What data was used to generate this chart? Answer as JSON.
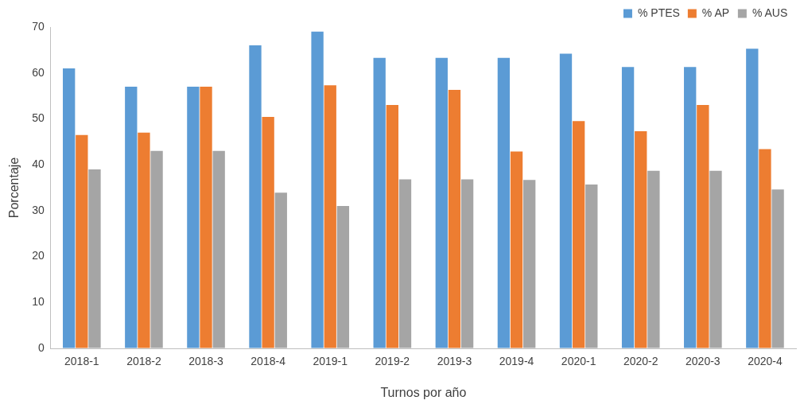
{
  "chart_data": {
    "type": "bar",
    "xlabel": "Turnos por año",
    "ylabel": "Porcentaje",
    "categories": [
      "2018-1",
      "2018-2",
      "2018-3",
      "2018-4",
      "2019-1",
      "2019-2",
      "2019-3",
      "2019-4",
      "2020-1",
      "2020-2",
      "2020-3",
      "2020-4"
    ],
    "series": [
      {
        "name": "% PTES",
        "color": "#5b9bd5",
        "values": [
          61,
          57,
          57,
          66,
          69,
          63.3,
          63.3,
          63.3,
          64.2,
          61.3,
          61.3,
          65.3
        ]
      },
      {
        "name": "% AP",
        "color": "#ed7d31",
        "values": [
          46.5,
          47,
          57,
          50.4,
          57.3,
          53,
          56.3,
          42.9,
          49.5,
          47.3,
          53,
          43.4
        ]
      },
      {
        "name": "% AUS",
        "color": "#a5a5a5",
        "values": [
          39,
          43,
          43,
          33.9,
          31,
          36.8,
          36.8,
          36.7,
          35.7,
          38.7,
          38.7,
          34.6
        ]
      }
    ],
    "ylim": [
      0,
      70
    ],
    "yticks": [
      0,
      10,
      20,
      30,
      40,
      50,
      60,
      70
    ],
    "grid": false,
    "legend": "top right"
  }
}
